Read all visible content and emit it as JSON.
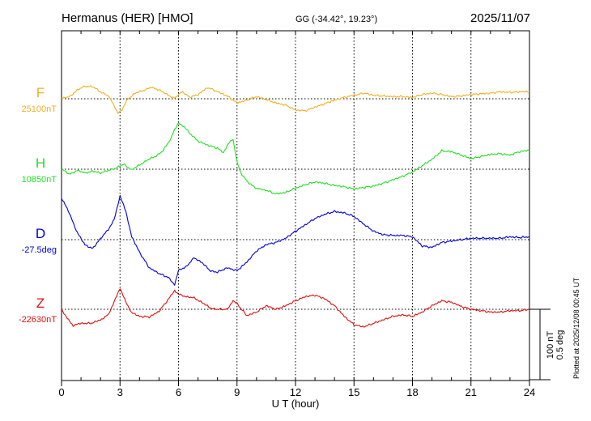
{
  "header": {
    "station": "Hermanus (HER)  [HMO]",
    "coords": "GG (-34.42°,  19.23°)",
    "date": "2025/11/07"
  },
  "footer": {
    "plotted": "Plotted at 2025/12/08 00:45 UT"
  },
  "scale": {
    "nt": "100 nT",
    "deg": "0.5 deg"
  },
  "chart_data": {
    "type": "line",
    "title": "Hermanus (HER)  [HMO]",
    "xlabel": "U T (hour)",
    "xlim": [
      0,
      24
    ],
    "xticks": [
      0,
      3,
      6,
      9,
      12,
      15,
      18,
      21,
      24
    ],
    "xtick_labels": [
      "0",
      "3",
      "6",
      "9",
      "12",
      "15",
      "18",
      "21",
      "24"
    ],
    "units_per_scale_bar": {
      "nT": 100,
      "deg": 0.5
    },
    "series": [
      {
        "name": "F",
        "baseline_label": "25100nT",
        "color": "#f0b020",
        "baseline": 25100,
        "unit": "nT",
        "x": [
          0,
          0.4,
          0.8,
          1.2,
          1.6,
          2.0,
          2.4,
          2.7,
          2.9,
          3.1,
          3.4,
          3.8,
          4.2,
          4.6,
          5.0,
          5.4,
          5.8,
          6.2,
          6.6,
          7.0,
          7.5,
          8.0,
          8.5,
          9.0,
          9.5,
          10.0,
          10.5,
          11.0,
          11.5,
          12.0,
          12.5,
          13.0,
          13.5,
          14.0,
          14.5,
          15.0,
          15.5,
          16.0,
          16.5,
          17.0,
          17.5,
          18.0,
          18.5,
          19.0,
          19.5,
          20.0,
          20.5,
          21.0,
          21.5,
          22.0,
          22.5,
          23.0,
          23.5,
          24.0
        ],
        "values": [
          25100,
          25103,
          25112,
          25118,
          25117,
          25110,
          25104,
          25090,
          25080,
          25085,
          25100,
          25108,
          25112,
          25116,
          25113,
          25106,
          25101,
          25110,
          25102,
          25106,
          25116,
          25110,
          25104,
          25094,
          25098,
          25103,
          25099,
          25094,
          25091,
          25084,
          25083,
          25088,
          25093,
          25098,
          25102,
          25105,
          25108,
          25105,
          25104,
          25103,
          25103,
          25102,
          25106,
          25108,
          25106,
          25103,
          25104,
          25106,
          25107,
          25108,
          25110,
          25109,
          25110,
          25110
        ]
      },
      {
        "name": "H",
        "baseline_label": "10850nT",
        "color": "#22e022",
        "baseline": 10850,
        "unit": "nT",
        "x": [
          0,
          0.4,
          0.8,
          1.2,
          1.6,
          2.0,
          2.4,
          2.8,
          3.2,
          3.6,
          4.0,
          4.4,
          4.8,
          5.2,
          5.6,
          5.8,
          6.0,
          6.3,
          6.6,
          7.0,
          7.5,
          8.0,
          8.3,
          8.6,
          8.8,
          9.0,
          9.2,
          9.6,
          10.0,
          10.5,
          11.0,
          11.5,
          12.0,
          12.5,
          13.0,
          13.5,
          14.0,
          14.5,
          15.0,
          15.5,
          16.0,
          16.5,
          17.0,
          17.5,
          18.0,
          18.5,
          19.0,
          19.5,
          20.0,
          20.5,
          21.0,
          21.5,
          22.0,
          22.5,
          23.0,
          23.5,
          24.0
        ],
        "values": [
          10850,
          10843,
          10848,
          10845,
          10847,
          10845,
          10848,
          10852,
          10857,
          10849,
          10856,
          10863,
          10868,
          10876,
          10893,
          10906,
          10915,
          10910,
          10900,
          10890,
          10884,
          10880,
          10874,
          10888,
          10892,
          10860,
          10845,
          10830,
          10823,
          10820,
          10815,
          10817,
          10823,
          10828,
          10832,
          10830,
          10827,
          10825,
          10822,
          10824,
          10826,
          10830,
          10835,
          10840,
          10846,
          10855,
          10864,
          10876,
          10875,
          10870,
          10865,
          10868,
          10871,
          10872,
          10870,
          10875,
          10877
        ]
      },
      {
        "name": "D",
        "baseline_label": "-27.5deg",
        "color": "#0000e0",
        "baseline": -27.5,
        "unit": "deg",
        "x": [
          0,
          0.4,
          0.8,
          1.2,
          1.6,
          2.0,
          2.4,
          2.7,
          3.0,
          3.3,
          3.6,
          4.0,
          4.5,
          5.0,
          5.5,
          5.8,
          6.0,
          6.4,
          6.8,
          7.2,
          7.6,
          8.0,
          8.5,
          9.0,
          9.5,
          10.0,
          10.5,
          11.0,
          11.5,
          12.0,
          12.5,
          13.0,
          13.5,
          14.0,
          14.5,
          15.0,
          15.5,
          16.0,
          16.5,
          17.0,
          17.5,
          18.0,
          18.5,
          19.0,
          19.5,
          20.0,
          20.5,
          21.0,
          21.5,
          22.0,
          22.5,
          23.0,
          23.5,
          24.0
        ],
        "values": [
          -27.205,
          -27.31,
          -27.45,
          -27.535,
          -27.565,
          -27.49,
          -27.43,
          -27.36,
          -27.19,
          -27.3,
          -27.48,
          -27.59,
          -27.7,
          -27.74,
          -27.77,
          -27.82,
          -27.72,
          -27.69,
          -27.63,
          -27.66,
          -27.72,
          -27.73,
          -27.7,
          -27.72,
          -27.66,
          -27.58,
          -27.535,
          -27.52,
          -27.49,
          -27.44,
          -27.395,
          -27.35,
          -27.32,
          -27.3,
          -27.31,
          -27.335,
          -27.39,
          -27.44,
          -27.465,
          -27.47,
          -27.47,
          -27.48,
          -27.545,
          -27.555,
          -27.52,
          -27.51,
          -27.5,
          -27.49,
          -27.49,
          -27.49,
          -27.49,
          -27.48,
          -27.485,
          -27.48
        ]
      },
      {
        "name": "Z",
        "baseline_label": "-22630nT",
        "color": "#e01010",
        "baseline": -22630,
        "unit": "nT",
        "x": [
          0,
          0.3,
          0.6,
          1.0,
          1.5,
          2.0,
          2.4,
          2.7,
          3.0,
          3.3,
          3.6,
          4.0,
          4.5,
          5.0,
          5.5,
          5.8,
          6.0,
          6.4,
          6.8,
          7.2,
          7.6,
          8.0,
          8.5,
          8.8,
          9.0,
          9.5,
          10.0,
          10.5,
          11.0,
          11.5,
          12.0,
          12.5,
          13.0,
          13.5,
          14.0,
          14.5,
          15.0,
          15.5,
          16.0,
          16.5,
          17.0,
          17.5,
          18.0,
          18.5,
          19.0,
          19.5,
          20.0,
          20.5,
          21.0,
          21.5,
          22.0,
          22.5,
          23.0,
          23.5,
          24.0
        ],
        "values": [
          -22630,
          -22643,
          -22653,
          -22650,
          -22650,
          -22645,
          -22638,
          -22620,
          -22600,
          -22620,
          -22635,
          -22640,
          -22641,
          -22633,
          -22615,
          -22603,
          -22609,
          -22612,
          -22614,
          -22620,
          -22628,
          -22630,
          -22630,
          -22618,
          -22622,
          -22639,
          -22634,
          -22625,
          -22630,
          -22625,
          -22618,
          -22612,
          -22610,
          -22615,
          -22625,
          -22640,
          -22652,
          -22655,
          -22650,
          -22645,
          -22640,
          -22638,
          -22640,
          -22634,
          -22625,
          -22618,
          -22620,
          -22626,
          -22630,
          -22632,
          -22634,
          -22634,
          -22632,
          -22632,
          -22630
        ]
      }
    ]
  }
}
